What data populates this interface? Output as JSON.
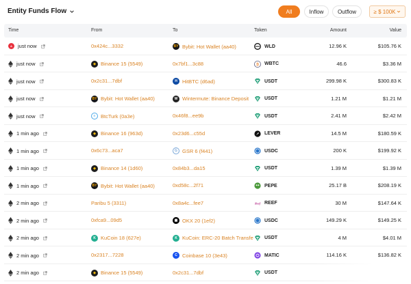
{
  "header": {
    "title": "Entity Funds Flow",
    "tabs": [
      {
        "label": "All",
        "active": true
      },
      {
        "label": "Inflow",
        "active": false
      },
      {
        "label": "Outflow",
        "active": false
      }
    ],
    "filter_label": "≥ $ 100K"
  },
  "columns": {
    "time": "Time",
    "from": "From",
    "to": "To",
    "token": "Token",
    "amount": "Amount",
    "value": "Value"
  },
  "colors": {
    "accent": "#f07d1f",
    "link": "#d98324"
  },
  "rows": [
    {
      "chain": "red-logo",
      "time": "just now",
      "from": "0x424c...3332",
      "from_icon": "",
      "to": "Bybit: Hot Wallet (aa40)",
      "to_icon": "bybit-icon",
      "token": "WLD",
      "token_icon": "wld-icon",
      "amount": "12.96 K",
      "value": "$105.76 K"
    },
    {
      "chain": "eth",
      "time": "just now",
      "from": "Binance 15 (5549)",
      "from_icon": "binance-icon",
      "to": "0x7bf1...3c88",
      "to_icon": "",
      "token": "WBTC",
      "token_icon": "wbtc-icon",
      "amount": "46.6",
      "value": "$3.36 M"
    },
    {
      "chain": "eth",
      "time": "just now",
      "from": "0x2c31...7dbf",
      "from_icon": "",
      "to": "HitBTC (d6ad)",
      "to_icon": "hitbtc-icon",
      "token": "USDT",
      "token_icon": "usdt-icon",
      "amount": "299.98 K",
      "value": "$300.83 K"
    },
    {
      "chain": "eth",
      "time": "just now",
      "from": "Bybit: Hot Wallet (aa40)",
      "from_icon": "bybit-icon",
      "to": "Wintermute: Binance Deposit",
      "to_icon": "wintermute-icon",
      "token": "USDT",
      "token_icon": "usdt-icon",
      "amount": "1.21 M",
      "value": "$1.21 M"
    },
    {
      "chain": "eth",
      "time": "just now",
      "from": "BtcTurk (0a3e)",
      "from_icon": "btcturk-icon",
      "to": "0x46f8...ee9b",
      "to_icon": "",
      "token": "USDT",
      "token_icon": "usdt-icon",
      "amount": "2.41 M",
      "value": "$2.42 M"
    },
    {
      "chain": "eth",
      "time": "1 min ago",
      "from": "Binance 16 (963d)",
      "from_icon": "binance-icon",
      "to": "0x23d6...c55d",
      "to_icon": "",
      "token": "LEVER",
      "token_icon": "lever-icon",
      "amount": "14.5 M",
      "value": "$180.59 K"
    },
    {
      "chain": "eth",
      "time": "1 min ago",
      "from": "0x6c73...aca7",
      "from_icon": "",
      "to": "GSR 6 (f441)",
      "to_icon": "gsr-icon",
      "token": "USDC",
      "token_icon": "usdc-icon",
      "amount": "200 K",
      "value": "$199.92 K"
    },
    {
      "chain": "eth",
      "time": "1 min ago",
      "from": "Binance 14 (1d60)",
      "from_icon": "binance-icon",
      "to": "0x84b3...da15",
      "to_icon": "",
      "token": "USDT",
      "token_icon": "usdt-icon",
      "amount": "1.39 M",
      "value": "$1.39 M"
    },
    {
      "chain": "eth",
      "time": "1 min ago",
      "from": "Bybit: Hot Wallet (aa40)",
      "from_icon": "bybit-icon",
      "to": "0xd58c...2f71",
      "to_icon": "",
      "token": "PEPE",
      "token_icon": "pepe-icon",
      "amount": "25.17 B",
      "value": "$208.19 K"
    },
    {
      "chain": "eth",
      "time": "2 min ago",
      "from": "Paribu 5 (3311)",
      "from_icon": "",
      "to": "0x8a4c...fee7",
      "to_icon": "",
      "token": "REEF",
      "token_icon": "reef-icon",
      "amount": "30 M",
      "value": "$147.64 K"
    },
    {
      "chain": "eth",
      "time": "2 min ago",
      "from": "0xfca9...09d5",
      "from_icon": "",
      "to": "OKX 20 (1ef2)",
      "to_icon": "okx-icon",
      "token": "USDC",
      "token_icon": "usdc-icon",
      "amount": "149.29 K",
      "value": "$149.25 K"
    },
    {
      "chain": "eth",
      "time": "2 min ago",
      "from": "KuCoin 18 (627e)",
      "from_icon": "kucoin-icon",
      "to": "KuCoin: ERC-20 Batch Transfe",
      "to_icon": "kucoin-icon",
      "token": "USDT",
      "token_icon": "usdt-icon",
      "amount": "4 M",
      "value": "$4.01 M"
    },
    {
      "chain": "eth",
      "time": "2 min ago",
      "from": "0x2317...7228",
      "from_icon": "",
      "to": "Coinbase 10 (3e43)",
      "to_icon": "coinbase-icon",
      "token": "MATIC",
      "token_icon": "matic-icon",
      "amount": "114.16 K",
      "value": "$136.82 K"
    },
    {
      "chain": "eth",
      "time": "2 min ago",
      "from": "Binance 15 (5549)",
      "from_icon": "binance-icon",
      "to": "0x2c31...7dbf",
      "to_icon": "",
      "token": "USDT",
      "token_icon": "usdt-icon",
      "amount": "",
      "value": ""
    }
  ]
}
